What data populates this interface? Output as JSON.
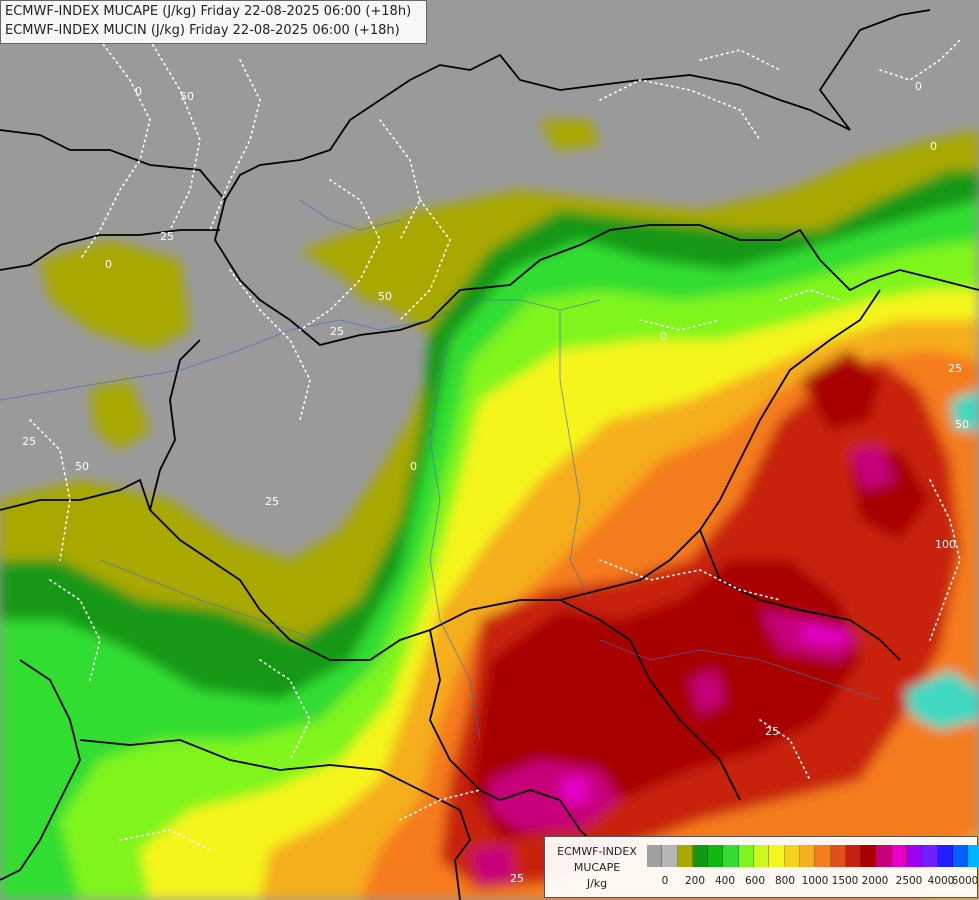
{
  "title": {
    "line1": "ECMWF-INDEX MUCAPE (J/kg) Friday 22-08-2025 06:00 (+18h)",
    "line2": "ECMWF-INDEX MUCIN (J/kg) Friday 22-08-2025 06:00 (+18h)"
  },
  "legend": {
    "name_line1": "ECMWF-INDEX",
    "name_line2": "MUCAPE",
    "unit": "J/kg",
    "colors": [
      "#a0a0a0",
      "#b5b5b5",
      "#a8a800",
      "#129812",
      "#12b812",
      "#32dd32",
      "#7ff51f",
      "#cdf51f",
      "#f5f51f",
      "#f5d21f",
      "#f5ae1f",
      "#f57c1f",
      "#e0501b",
      "#c82010",
      "#a80000",
      "#c8007a",
      "#e600c8",
      "#a000f0",
      "#7020ff",
      "#2020ff",
      "#0060ff",
      "#00b4ff",
      "#40f0ff",
      "#c0ffff",
      "#ffffff"
    ],
    "tick_labels": [
      "0",
      "200",
      "400",
      "600",
      "800",
      "1000",
      "1500",
      "2000",
      "2500",
      "4000",
      "6000"
    ]
  },
  "map": {
    "mucin_contour_labels": [
      "0",
      "25",
      "50",
      "100"
    ]
  }
}
